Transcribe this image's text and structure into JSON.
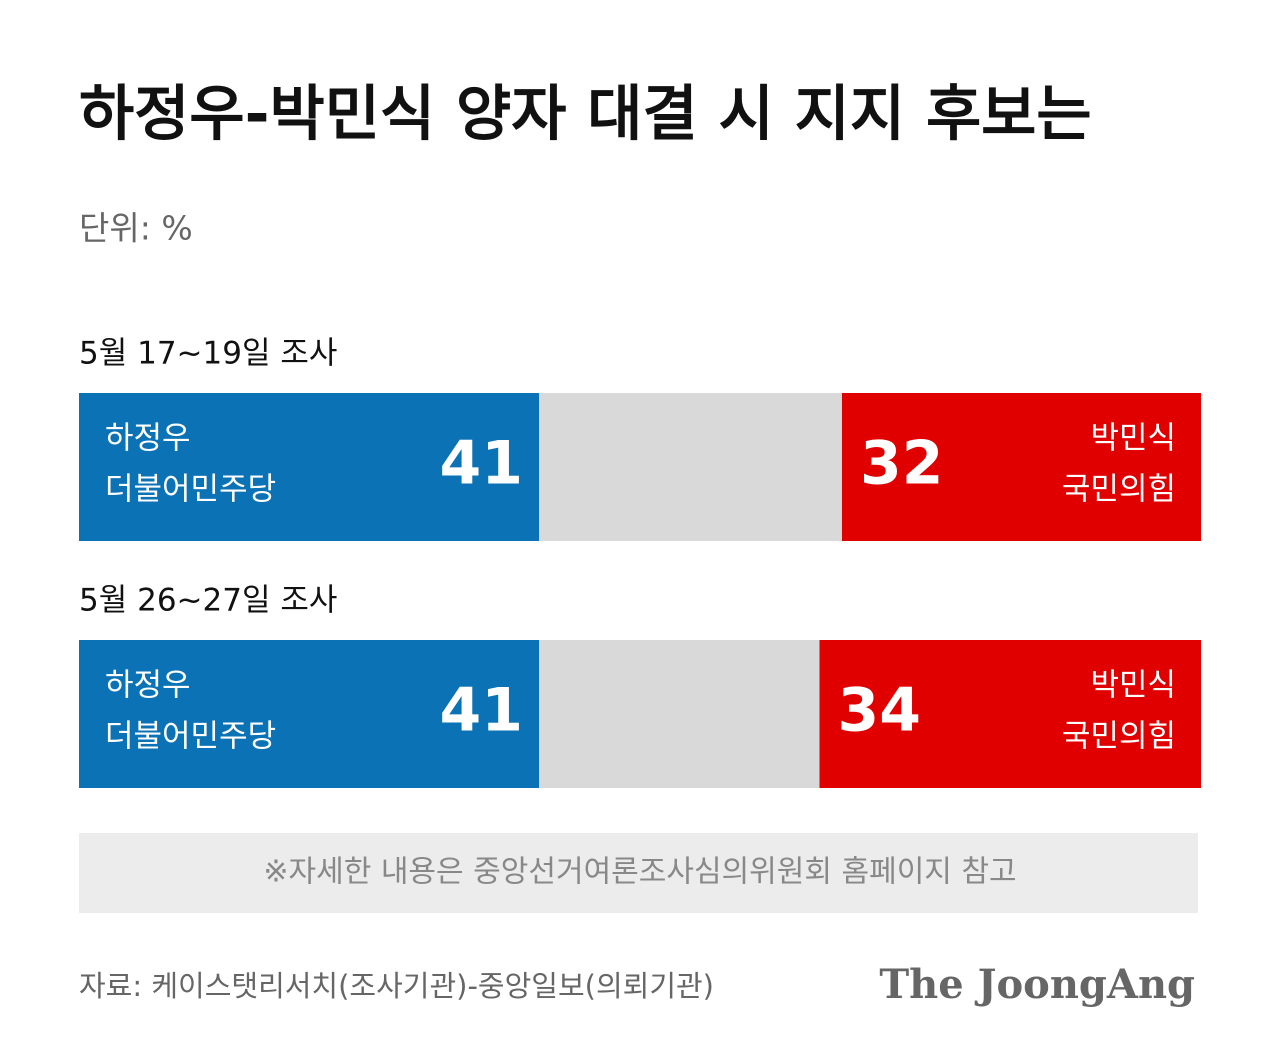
{
  "chart_data": {
    "type": "bar",
    "orientation": "horizontal",
    "stacked": true,
    "title": "하정우-박민식 양자 대결 시 지지 후보는",
    "unit": "단위: %",
    "categories": [
      "5월 17~19일 조사",
      "5월 26~27일 조사"
    ],
    "series": [
      {
        "name": "하정우",
        "party": "더불어민주당",
        "color": "#0a72b5",
        "values": [
          41,
          41
        ],
        "anchor": "left"
      },
      {
        "name": "박민식",
        "party": "국민의힘",
        "color": "#e00000",
        "values": [
          32,
          34
        ],
        "anchor": "right"
      }
    ],
    "xlim": [
      0,
      100
    ],
    "note": "※자세한 내용은 중앙선거여론조사심의위원회 홈페이지 참고",
    "source": "자료: 케이스탯리서치(조사기관)-중앙일보(의뢰기관)",
    "logo": "The JoongAng"
  }
}
